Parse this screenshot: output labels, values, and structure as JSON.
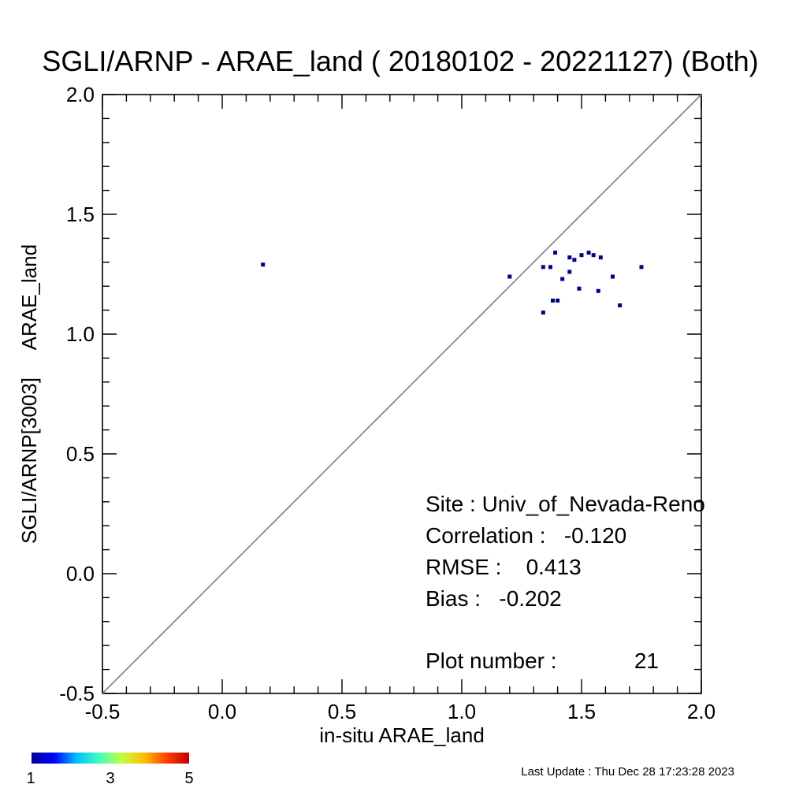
{
  "chart_data": {
    "type": "scatter",
    "title": "SGLI/ARNP - ARAE_land ( 20180102 - 20221127) (Both)",
    "xlabel": "in-situ ARAE_land",
    "ylabel": "SGLI/ARNP[3003]     ARAE_land",
    "xlim": [
      -0.5,
      2.0
    ],
    "ylim": [
      -0.5,
      2.0
    ],
    "xticks": [
      "-0.5",
      "0.0",
      "0.5",
      "1.0",
      "1.5",
      "2.0"
    ],
    "yticks": [
      "-0.5",
      "0.0",
      "0.5",
      "1.0",
      "1.5",
      "2.0"
    ],
    "point_color": "#00008b",
    "reference_line": "1:1",
    "points": [
      {
        "x": 0.17,
        "y": 1.29
      },
      {
        "x": 1.2,
        "y": 1.24
      },
      {
        "x": 1.34,
        "y": 1.28
      },
      {
        "x": 1.37,
        "y": 1.28
      },
      {
        "x": 1.39,
        "y": 1.34
      },
      {
        "x": 1.34,
        "y": 1.09
      },
      {
        "x": 1.38,
        "y": 1.14
      },
      {
        "x": 1.4,
        "y": 1.14
      },
      {
        "x": 1.42,
        "y": 1.23
      },
      {
        "x": 1.45,
        "y": 1.26
      },
      {
        "x": 1.45,
        "y": 1.32
      },
      {
        "x": 1.49,
        "y": 1.19
      },
      {
        "x": 1.5,
        "y": 1.33
      },
      {
        "x": 1.53,
        "y": 1.34
      },
      {
        "x": 1.55,
        "y": 1.33
      },
      {
        "x": 1.57,
        "y": 1.18
      },
      {
        "x": 1.58,
        "y": 1.32
      },
      {
        "x": 1.63,
        "y": 1.24
      },
      {
        "x": 1.66,
        "y": 1.12
      },
      {
        "x": 1.75,
        "y": 1.28
      },
      {
        "x": 1.47,
        "y": 1.31
      }
    ],
    "colorbar": {
      "ticks": [
        "1",
        "3",
        "5"
      ],
      "colors": [
        "#00008f",
        "#0000ff",
        "#00bfff",
        "#40ffbf",
        "#bfff40",
        "#ffbf00",
        "#ff4000",
        "#bf0000"
      ]
    }
  },
  "stats": {
    "site": "Site : Univ_of_Nevada-Reno",
    "correlation": "Correlation :   -0.120",
    "rmse": "RMSE :    0.413",
    "bias": "Bias :   -0.202",
    "plot_number_label": "Plot number :",
    "plot_number_value": "21"
  },
  "footer": {
    "last_update": "Last Update : Thu Dec 28 17:23:28 2023"
  }
}
